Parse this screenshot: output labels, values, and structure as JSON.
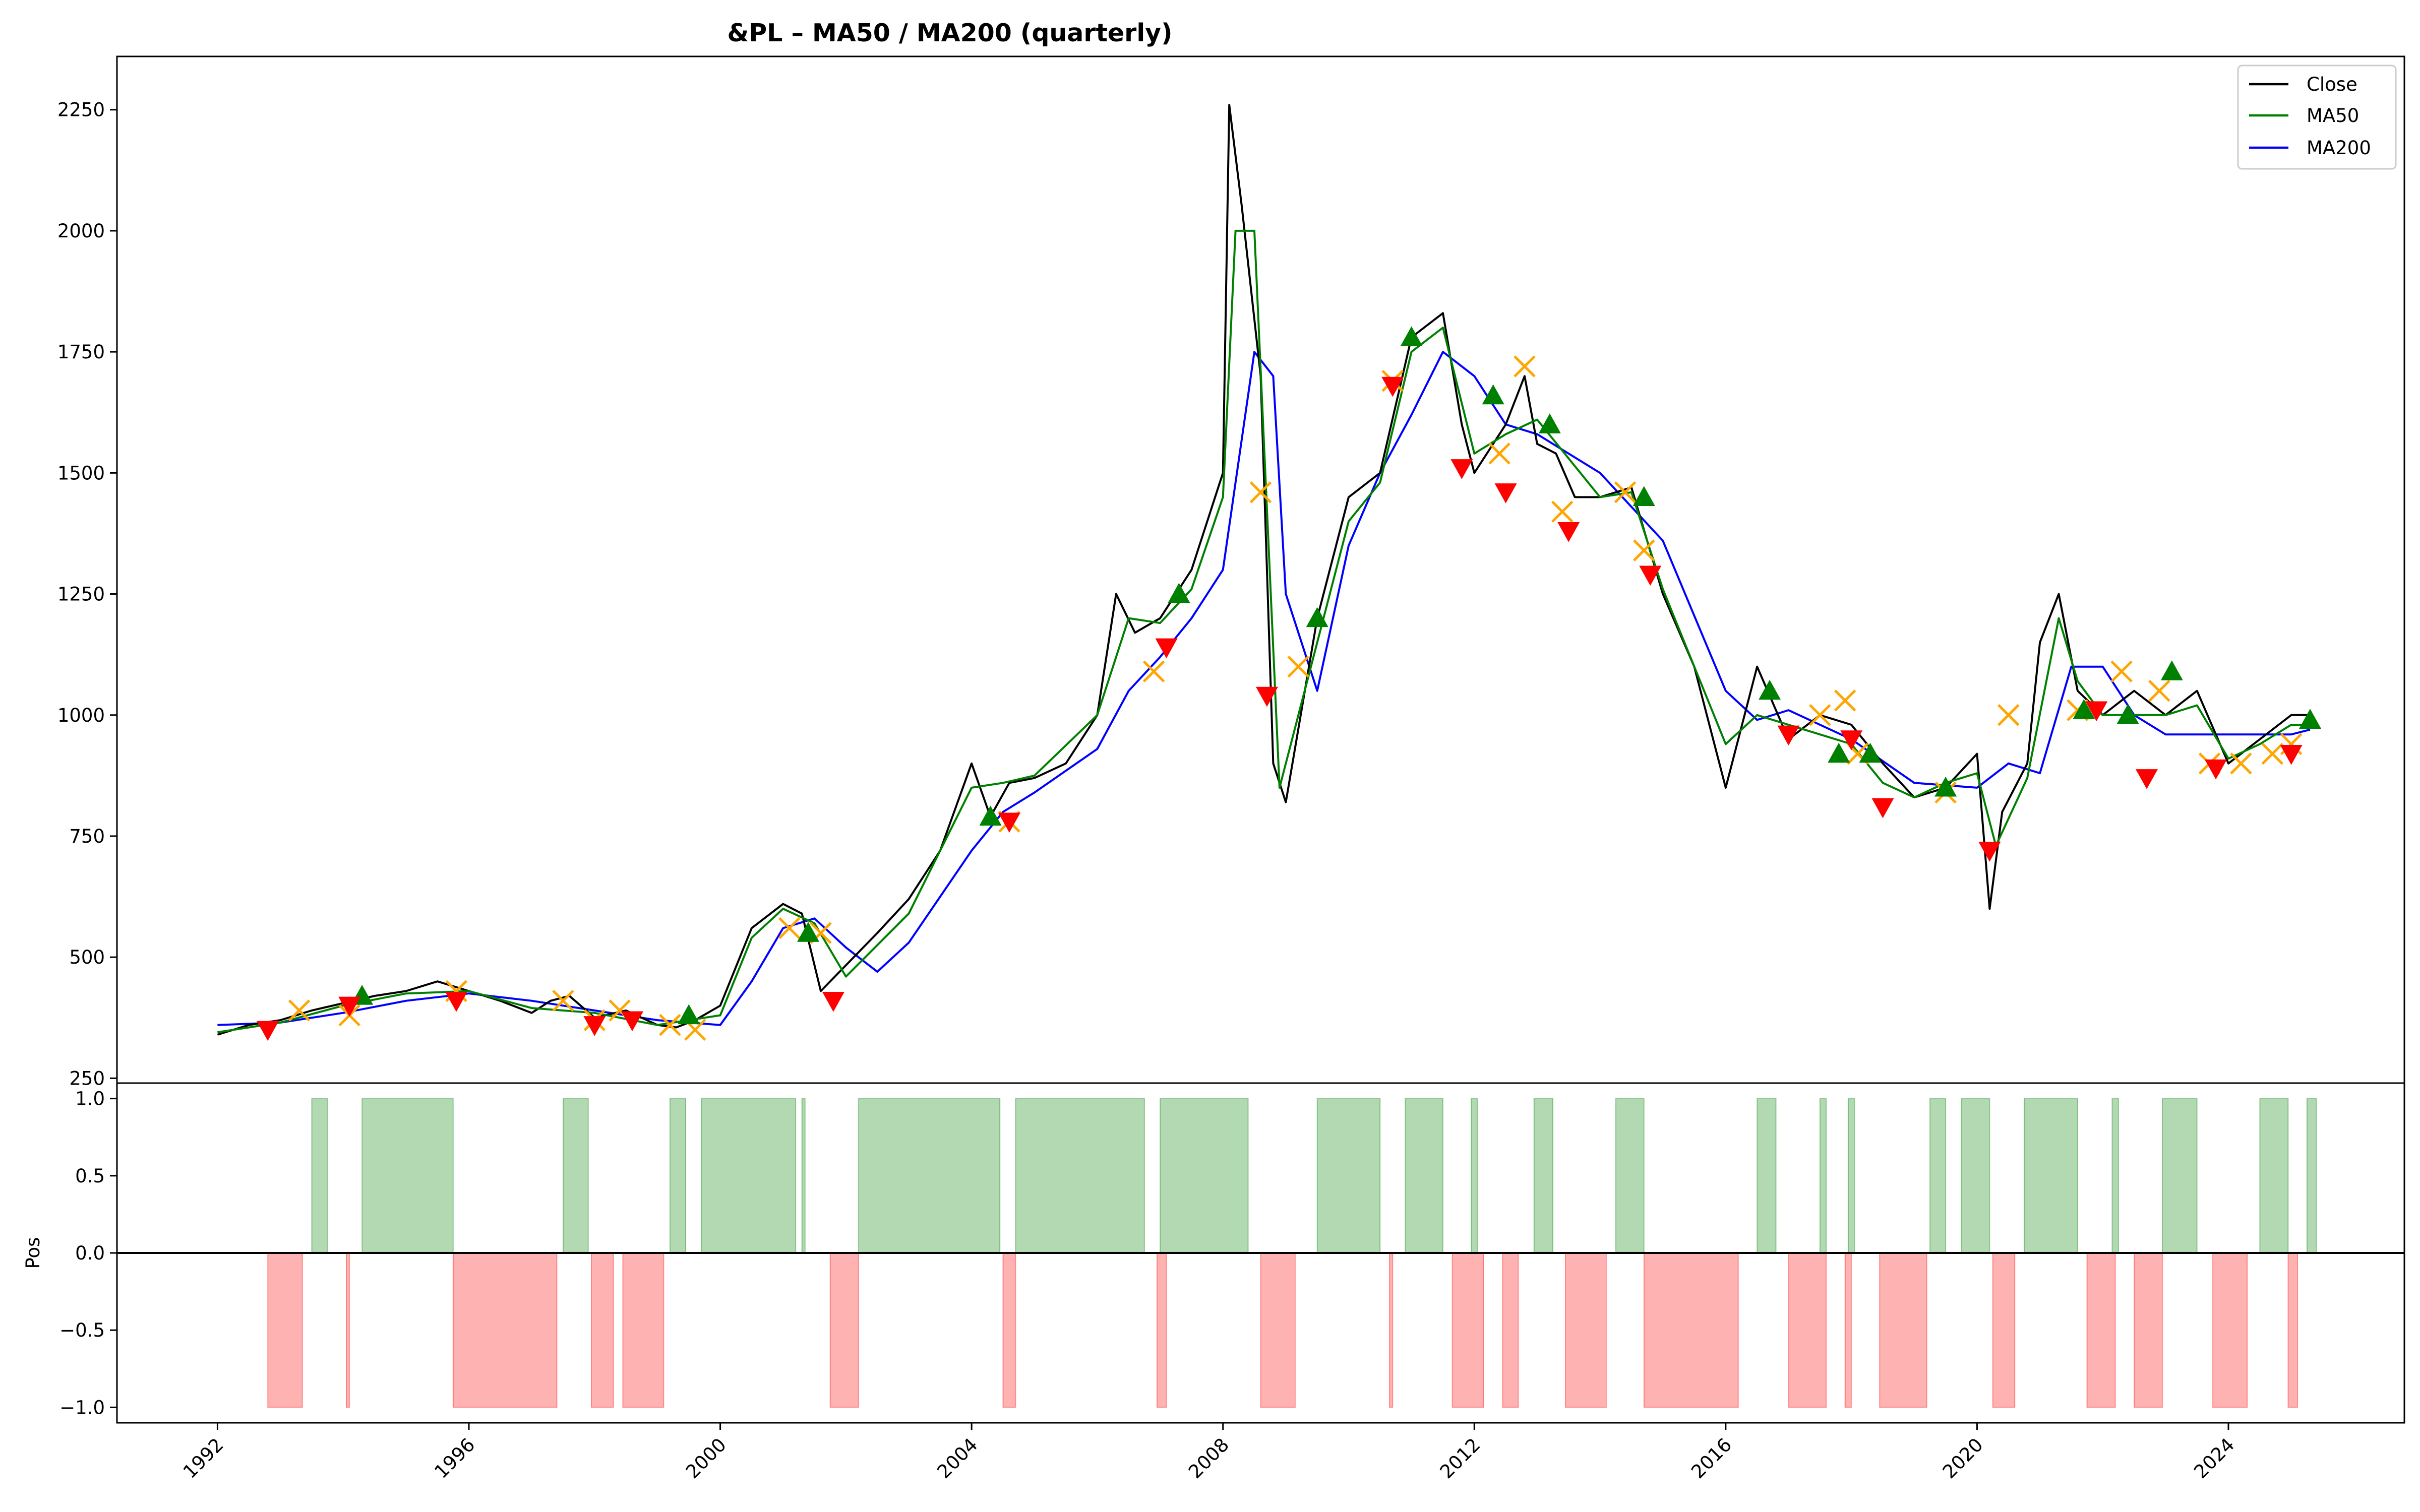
{
  "chart_data": [
    {
      "type": "line",
      "title": "&PL – MA50 / MA200 (quarterly)",
      "xlabel": "",
      "ylabel": "",
      "xlim": [
        1990.4,
        2026.8
      ],
      "ylim": [
        240,
        2360
      ],
      "yticks": [
        250,
        500,
        750,
        1000,
        1250,
        1500,
        1750,
        2000,
        2250
      ],
      "xticks": [
        1992,
        1996,
        2000,
        2004,
        2008,
        2012,
        2016,
        2020,
        2024
      ],
      "legend": {
        "placement": "top-right",
        "entries": [
          "Close",
          "MA50",
          "MA200"
        ]
      },
      "colors": {
        "Close": "#000000",
        "MA50": "#008000",
        "MA200": "#0000ff",
        "buy": "#008000",
        "sell": "#ff0000",
        "exit": "#ffa500"
      },
      "series": [
        {
          "name": "Close",
          "x": [
            1992.0,
            1992.5,
            1993.0,
            1993.5,
            1994.0,
            1994.5,
            1995.0,
            1995.5,
            1996.0,
            1996.5,
            1997.0,
            1997.3,
            1997.6,
            1998.0,
            1998.5,
            1999.0,
            1999.3,
            1999.6,
            2000.0,
            2000.5,
            2001.0,
            2001.3,
            2001.6,
            2001.9,
            2002.5,
            2003.0,
            2003.5,
            2004.0,
            2004.3,
            2004.6,
            2005.0,
            2005.5,
            2006.0,
            2006.3,
            2006.6,
            2007.0,
            2007.5,
            2008.0,
            2008.1,
            2008.3,
            2008.6,
            2008.8,
            2009.0,
            2009.5,
            2010.0,
            2010.5,
            2011.0,
            2011.5,
            2011.8,
            2012.0,
            2012.5,
            2012.8,
            2013.0,
            2013.3,
            2013.6,
            2014.0,
            2014.5,
            2015.0,
            2015.5,
            2016.0,
            2016.5,
            2017.0,
            2017.5,
            2018.0,
            2018.5,
            2019.0,
            2019.5,
            2020.0,
            2020.2,
            2020.4,
            2020.8,
            2021.0,
            2021.3,
            2021.6,
            2022.0,
            2022.5,
            2023.0,
            2023.5,
            2024.0,
            2024.5,
            2025.0,
            2025.3
          ],
          "values": [
            340,
            360,
            370,
            390,
            405,
            420,
            430,
            450,
            430,
            410,
            385,
            410,
            420,
            375,
            390,
            360,
            355,
            370,
            400,
            560,
            610,
            590,
            430,
            470,
            550,
            620,
            720,
            900,
            790,
            860,
            870,
            900,
            1000,
            1250,
            1170,
            1200,
            1300,
            1500,
            2260,
            2050,
            1700,
            900,
            820,
            1200,
            1450,
            1500,
            1780,
            1830,
            1600,
            1500,
            1600,
            1700,
            1560,
            1540,
            1450,
            1450,
            1470,
            1250,
            1100,
            850,
            1100,
            950,
            1000,
            980,
            900,
            830,
            850,
            920,
            600,
            800,
            900,
            1150,
            1250,
            1050,
            1000,
            1050,
            1000,
            1050,
            900,
            950,
            1000,
            1000
          ]
        },
        {
          "name": "MA50",
          "x": [
            1992.0,
            1993.0,
            1994.0,
            1995.0,
            1996.0,
            1997.0,
            1998.0,
            1999.0,
            2000.0,
            2000.5,
            2001.0,
            2001.5,
            2002.0,
            2003.0,
            2004.0,
            2004.5,
            2005.0,
            2006.0,
            2006.5,
            2007.0,
            2007.5,
            2008.0,
            2008.2,
            2008.5,
            2008.9,
            2009.5,
            2010.0,
            2010.5,
            2011.0,
            2011.5,
            2012.0,
            2012.5,
            2013.0,
            2014.0,
            2014.5,
            2015.0,
            2016.0,
            2016.5,
            2017.0,
            2018.0,
            2018.5,
            2019.0,
            2019.5,
            2020.0,
            2020.3,
            2020.8,
            2021.3,
            2021.6,
            2022.0,
            2022.5,
            2023.0,
            2023.5,
            2024.0,
            2024.5,
            2025.0,
            2025.3
          ],
          "values": [
            345,
            365,
            400,
            425,
            430,
            395,
            385,
            360,
            380,
            540,
            600,
            570,
            460,
            590,
            850,
            860,
            875,
            1000,
            1200,
            1190,
            1260,
            1450,
            2000,
            2000,
            850,
            1150,
            1400,
            1480,
            1750,
            1800,
            1540,
            1580,
            1610,
            1450,
            1460,
            1260,
            940,
            1000,
            980,
            940,
            860,
            830,
            860,
            880,
            730,
            870,
            1200,
            1070,
            1000,
            1000,
            1000,
            1020,
            910,
            940,
            980,
            980
          ]
        },
        {
          "name": "MA200",
          "x": [
            1992.0,
            1993.0,
            1994.0,
            1995.0,
            1996.0,
            1997.0,
            1998.0,
            1999.0,
            2000.0,
            2000.5,
            2001.0,
            2001.5,
            2002.0,
            2002.5,
            2003.0,
            2004.0,
            2004.5,
            2005.0,
            2006.0,
            2006.5,
            2007.0,
            2007.5,
            2008.0,
            2008.5,
            2008.8,
            2009.0,
            2009.5,
            2010.0,
            2010.5,
            2011.0,
            2011.5,
            2012.0,
            2012.5,
            2013.0,
            2014.0,
            2014.5,
            2015.0,
            2016.0,
            2016.5,
            2017.0,
            2018.0,
            2019.0,
            2020.0,
            2020.5,
            2021.0,
            2021.5,
            2022.0,
            2022.5,
            2023.0,
            2024.0,
            2025.0,
            2025.3
          ],
          "values": [
            360,
            365,
            385,
            410,
            425,
            410,
            390,
            370,
            360,
            450,
            560,
            580,
            520,
            470,
            530,
            720,
            800,
            840,
            930,
            1050,
            1120,
            1200,
            1300,
            1750,
            1700,
            1250,
            1050,
            1350,
            1500,
            1620,
            1750,
            1700,
            1600,
            1580,
            1500,
            1430,
            1360,
            1050,
            990,
            1010,
            950,
            860,
            850,
            900,
            880,
            1100,
            1100,
            1000,
            960,
            960,
            960,
            970
          ]
        }
      ],
      "signals": {
        "buy": {
          "x": [
            1994.3,
            1999.5,
            2001.4,
            2004.3,
            2007.3,
            2009.5,
            2011.0,
            2012.3,
            2013.2,
            2014.7,
            2016.7,
            2017.8,
            2018.3,
            2019.5,
            2021.7,
            2022.4,
            2023.1,
            2025.3
          ],
          "y": [
            420,
            380,
            550,
            790,
            1250,
            1200,
            1780,
            1660,
            1600,
            1450,
            1050,
            920,
            920,
            850,
            1010,
            1000,
            1090,
            990
          ]
        },
        "sell": {
          "x": [
            1992.8,
            1994.1,
            1995.8,
            1998.0,
            1998.6,
            2001.8,
            2004.6,
            2007.1,
            2008.7,
            2010.7,
            2011.8,
            2012.5,
            2013.5,
            2014.8,
            2017.0,
            2018.0,
            2018.5,
            2020.2,
            2021.9,
            2022.7,
            2023.8,
            2025.0
          ],
          "y": [
            350,
            400,
            410,
            360,
            370,
            410,
            780,
            1140,
            1040,
            1680,
            1510,
            1460,
            1380,
            1290,
            960,
            950,
            810,
            720,
            1010,
            870,
            890,
            920
          ]
        },
        "exit": {
          "x": [
            1993.3,
            1994.1,
            1995.8,
            1997.5,
            1998.0,
            1998.4,
            1999.2,
            1999.6,
            2001.1,
            2001.6,
            2004.6,
            2006.9,
            2008.6,
            2009.2,
            2010.7,
            2012.4,
            2012.8,
            2013.4,
            2014.4,
            2014.7,
            2017.5,
            2017.9,
            2018.1,
            2019.5,
            2020.5,
            2021.6,
            2022.3,
            2022.9,
            2023.7,
            2024.2,
            2024.7,
            2025.0
          ],
          "y": [
            390,
            380,
            430,
            410,
            370,
            390,
            360,
            350,
            560,
            550,
            780,
            1090,
            1460,
            1100,
            1690,
            1540,
            1720,
            1420,
            1460,
            1340,
            1000,
            1030,
            920,
            840,
            1000,
            1010,
            1090,
            1050,
            900,
            900,
            920,
            940
          ]
        }
      }
    },
    {
      "type": "area",
      "title": "",
      "xlabel": "",
      "ylabel": "Pos",
      "xlim": [
        1990.4,
        2026.8
      ],
      "ylim": [
        -1.1,
        1.1
      ],
      "yticks": [
        -1.0,
        -0.5,
        0.0,
        0.5,
        1.0
      ],
      "colors": {
        "long": "#008000",
        "short": "#ff0000",
        "zero_line": "#000000"
      },
      "long_periods": [
        [
          1993.5,
          1993.75
        ],
        [
          1994.3,
          1995.75
        ],
        [
          1997.5,
          1997.9
        ],
        [
          1999.2,
          1999.45
        ],
        [
          1999.7,
          2001.2
        ],
        [
          2001.3,
          2001.35
        ],
        [
          2002.2,
          2004.45
        ],
        [
          2004.7,
          2006.75
        ],
        [
          2007.0,
          2008.4
        ],
        [
          2009.5,
          2010.5
        ],
        [
          2010.9,
          2011.5
        ],
        [
          2011.95,
          2012.05
        ],
        [
          2012.95,
          2013.25
        ],
        [
          2014.25,
          2014.7
        ],
        [
          2016.5,
          2016.8
        ],
        [
          2017.5,
          2017.6
        ],
        [
          2017.95,
          2018.05
        ],
        [
          2019.25,
          2019.5
        ],
        [
          2019.75,
          2020.2
        ],
        [
          2020.75,
          2021.6
        ],
        [
          2022.15,
          2022.25
        ],
        [
          2022.95,
          2023.5
        ],
        [
          2024.5,
          2024.95
        ],
        [
          2025.25,
          2025.4
        ]
      ],
      "short_periods": [
        [
          1992.8,
          1993.35
        ],
        [
          1994.05,
          1994.1
        ],
        [
          1995.75,
          1997.4
        ],
        [
          1997.95,
          1998.3
        ],
        [
          1998.45,
          1999.1
        ],
        [
          2001.75,
          2002.2
        ],
        [
          2004.5,
          2004.7
        ],
        [
          2006.95,
          2007.1
        ],
        [
          2008.6,
          2009.15
        ],
        [
          2010.65,
          2010.7
        ],
        [
          2011.65,
          2012.15
        ],
        [
          2012.45,
          2012.7
        ],
        [
          2013.45,
          2014.1
        ],
        [
          2014.7,
          2016.2
        ],
        [
          2017.0,
          2017.6
        ],
        [
          2017.9,
          2018.0
        ],
        [
          2018.45,
          2019.2
        ],
        [
          2020.25,
          2020.6
        ],
        [
          2021.75,
          2022.2
        ],
        [
          2022.5,
          2022.95
        ],
        [
          2023.75,
          2024.3
        ],
        [
          2024.95,
          2025.1
        ]
      ]
    }
  ]
}
